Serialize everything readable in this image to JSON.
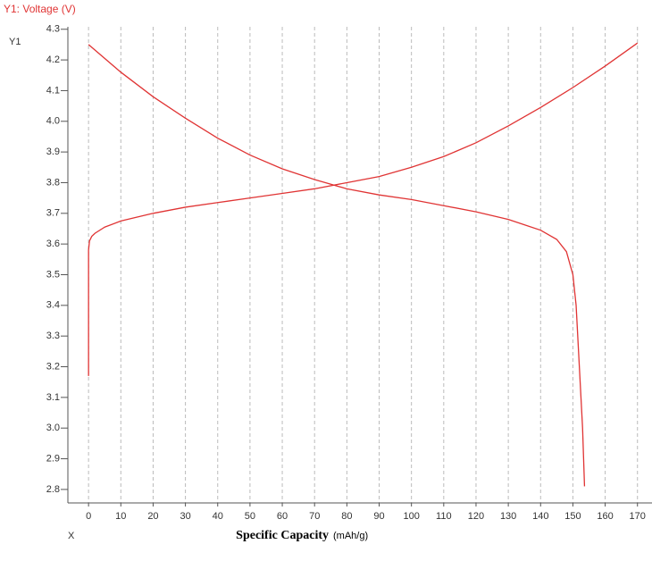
{
  "chart_data": {
    "type": "line",
    "title": "Y1: Voltage (V)",
    "y_label": "Y1",
    "x_axis_name": "X",
    "x_label": "Specific Capacity",
    "x_unit": "(mAh/g)",
    "xlim": [
      -6.4,
      174.5
    ],
    "ylim": [
      2.756,
      4.308
    ],
    "xticks": [
      0,
      10,
      20,
      30,
      40,
      50,
      60,
      70,
      80,
      90,
      100,
      110,
      120,
      130,
      140,
      150,
      160,
      170
    ],
    "yticks": [
      2.8,
      2.9,
      {
        "value": 3,
        "label": "3.0"
      },
      3.1,
      3.2,
      3.3,
      3.4,
      3.5,
      3.6,
      3.7,
      3.8,
      3.9,
      {
        "value": 4,
        "label": "4.0"
      },
      4.1,
      4.2,
      4.3
    ],
    "grid": true,
    "series": [
      {
        "color": "#e03434",
        "x": [
          0,
          0,
          0.3,
          1,
          2,
          5,
          10,
          20,
          30,
          40,
          50,
          60,
          70,
          80,
          90,
          100,
          110,
          120,
          130,
          140,
          150,
          160,
          170
        ],
        "values": [
          3.17,
          3.58,
          3.61,
          3.625,
          3.635,
          3.655,
          3.675,
          3.7,
          3.72,
          3.735,
          3.75,
          3.765,
          3.78,
          3.8,
          3.82,
          3.85,
          3.885,
          3.93,
          3.985,
          4.045,
          4.11,
          4.18,
          4.255
        ]
      },
      {
        "color": "#e03434",
        "x": [
          0,
          10,
          20,
          30,
          40,
          50,
          60,
          70,
          80,
          90,
          100,
          110,
          120,
          130,
          140,
          145,
          148,
          150,
          151,
          152,
          153,
          153.6
        ],
        "values": [
          4.25,
          4.16,
          4.08,
          4.01,
          3.945,
          3.89,
          3.845,
          3.81,
          3.78,
          3.76,
          3.745,
          3.725,
          3.705,
          3.68,
          3.645,
          3.615,
          3.575,
          3.5,
          3.4,
          3.2,
          3.0,
          2.81
        ]
      }
    ]
  }
}
